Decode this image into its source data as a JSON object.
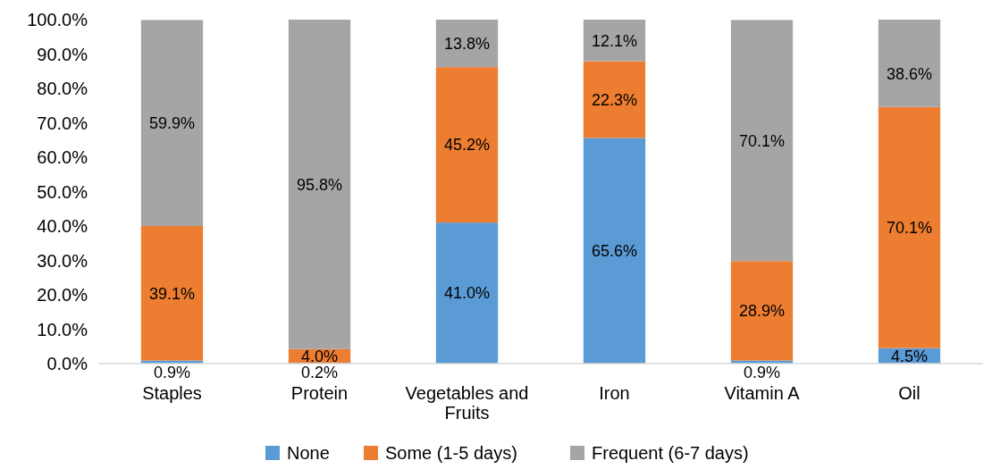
{
  "chart_data": {
    "type": "bar",
    "stacked": true,
    "categories": [
      "Staples",
      "Protein",
      "Vegetables and Fruits",
      "Iron",
      "Vitamin A",
      "Oil"
    ],
    "series": [
      {
        "name": "None",
        "color": "#5b9bd5",
        "values": [
          0.9,
          0.2,
          41.0,
          65.6,
          0.9,
          4.5
        ],
        "value_labels": [
          "0.9%",
          "0.2%",
          "41.0%",
          "65.6%",
          "0.9%",
          "4.5%"
        ]
      },
      {
        "name": "Some (1-5 days)",
        "color": "#ed7d31",
        "values": [
          39.1,
          4.0,
          45.2,
          22.3,
          28.9,
          70.1
        ],
        "value_labels": [
          "39.1%",
          "4.0%",
          "45.2%",
          "22.3%",
          "28.9%",
          "70.1%"
        ]
      },
      {
        "name": "Frequent (6-7 days)",
        "color": "#a5a5a5",
        "values": [
          59.9,
          95.8,
          13.8,
          12.1,
          70.1,
          25.4
        ],
        "value_labels": [
          "59.9%",
          "95.8%",
          "13.8%",
          "12.1%",
          "70.1%",
          null
        ]
      }
    ],
    "ylim": [
      0,
      100
    ],
    "yticks": [
      {
        "value": 0,
        "label": "0.0%"
      },
      {
        "value": 10,
        "label": "10.0%"
      },
      {
        "value": 20,
        "label": "20.0%"
      },
      {
        "value": 30,
        "label": "30.0%"
      },
      {
        "value": 40,
        "label": "40.0%"
      },
      {
        "value": 50,
        "label": "50.0%"
      },
      {
        "value": 60,
        "label": "60.0%"
      },
      {
        "value": 70,
        "label": "70.0%"
      },
      {
        "value": 80,
        "label": "80.0%"
      },
      {
        "value": 90,
        "label": "90.0%"
      },
      {
        "value": 100,
        "label": "100.0%"
      }
    ],
    "annotations": [
      "38.6%"
    ],
    "legend": "bottom"
  }
}
